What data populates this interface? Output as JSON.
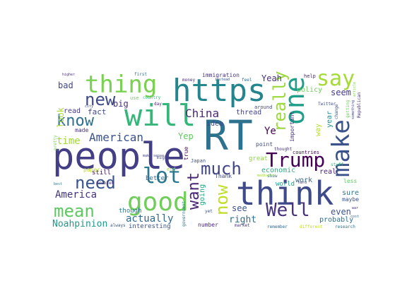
{
  "words": [
    {
      "text": "people",
      "color": "#433e85"
    },
    {
      "text": "RT",
      "color": "#2c718e"
    },
    {
      "text": "think",
      "color": "#3e4a89"
    },
    {
      "text": "https",
      "color": "#25858e"
    },
    {
      "text": "will",
      "color": "#35b779"
    },
    {
      "text": "good",
      "color": "#6ece58"
    },
    {
      "text": "thing",
      "color": "#7ad151"
    },
    {
      "text": "one",
      "color": "#1f9e89"
    },
    {
      "text": "make",
      "color": "#3b528b"
    },
    {
      "text": "Trump",
      "color": "#440154"
    },
    {
      "text": "say",
      "color": "#a5db36"
    },
    {
      "text": "really",
      "color": "#9bd93c"
    },
    {
      "text": "much",
      "color": "#414487"
    },
    {
      "text": "Well",
      "color": "#46327e"
    },
    {
      "text": "lot",
      "color": "#2a788e"
    },
    {
      "text": "want",
      "color": "#482475"
    },
    {
      "text": "need",
      "color": "#3a548c"
    },
    {
      "text": "mean",
      "color": "#5ec962"
    },
    {
      "text": "know",
      "color": "#2d708e"
    },
    {
      "text": "new",
      "color": "#3e4989"
    },
    {
      "text": "now",
      "color": "#bddf26"
    },
    {
      "text": "American",
      "color": "#3b528b"
    },
    {
      "text": "China",
      "color": "#482878"
    },
    {
      "text": "America",
      "color": "#46337f"
    },
    {
      "text": "actually",
      "color": "#31688e"
    },
    {
      "text": "Noahpinion",
      "color": "#1f9a8a"
    },
    {
      "text": "time",
      "color": "#a2da37"
    },
    {
      "text": "look",
      "color": "#addc30"
    },
    {
      "text": "bad",
      "color": "#414487"
    },
    {
      "text": "read",
      "color": "#443a83"
    },
    {
      "text": "fact",
      "color": "#3f4788"
    },
    {
      "text": "big",
      "color": "#472d7b"
    },
    {
      "text": "made",
      "color": "#46327e"
    },
    {
      "text": "see",
      "color": "#3b528b"
    },
    {
      "text": "right",
      "color": "#2d708e"
    },
    {
      "text": "going",
      "color": "#22a884"
    },
    {
      "text": "Yeah",
      "color": "#46327e"
    },
    {
      "text": "Ye",
      "color": "#440154"
    },
    {
      "text": "Yep",
      "color": "#5ec962"
    },
    {
      "text": "idea",
      "color": "#3e4989"
    },
    {
      "text": "thread",
      "color": "#414487"
    },
    {
      "text": "economic",
      "color": "#29af7f"
    },
    {
      "text": "even",
      "color": "#3b528b"
    },
    {
      "text": "probably",
      "color": "#2c728e"
    },
    {
      "text": "way",
      "color": "#b5de2b"
    },
    {
      "text": "year",
      "color": "#21918c"
    },
    {
      "text": "seem",
      "color": "#443983"
    },
    {
      "text": "policy",
      "color": "#6ece58"
    },
    {
      "text": "real",
      "color": "#482677"
    },
    {
      "text": "work",
      "color": "#31688e"
    },
    {
      "text": "sure",
      "color": "#2a788e"
    },
    {
      "text": "maybe",
      "color": "#3b528b"
    },
    {
      "text": "less",
      "color": "#5ec962"
    },
    {
      "text": "point",
      "color": "#3e4a89"
    },
    {
      "text": "important",
      "color": "#46337f"
    },
    {
      "text": "great",
      "color": "#8fd744"
    },
    {
      "text": "still",
      "color": "#440154"
    },
    {
      "text": "though",
      "color": "#2a788e"
    },
    {
      "text": "better",
      "color": "#31688e"
    },
    {
      "text": "interesting",
      "color": "#3b528b"
    },
    {
      "text": "number",
      "color": "#482878"
    },
    {
      "text": "Thank",
      "color": "#3e4989"
    },
    {
      "text": "world",
      "color": "#1f9e89"
    },
    {
      "text": "immigration",
      "color": "#46327e"
    },
    {
      "text": "true",
      "color": "#440154"
    },
    {
      "text": "Japan",
      "color": "#3b528b"
    },
    {
      "text": "end",
      "color": "#a5db36"
    },
    {
      "text": "paper",
      "color": "#bddf26"
    },
    {
      "text": "always",
      "color": "#3b528b"
    },
    {
      "text": "use",
      "color": "#6ece58"
    },
    {
      "text": "country",
      "color": "#35b779"
    },
    {
      "text": "around",
      "color": "#414487"
    },
    {
      "text": "help",
      "color": "#482475"
    },
    {
      "text": "thought",
      "color": "#46327e"
    },
    {
      "text": "countries",
      "color": "#440154"
    },
    {
      "text": "research",
      "color": "#2c728e"
    },
    {
      "text": "market",
      "color": "#46337f"
    },
    {
      "text": "Twitter",
      "color": "#3e4989"
    },
    {
      "text": "show",
      "color": "#31688e"
    },
    {
      "text": "first",
      "color": "#2a788e"
    },
    {
      "text": "might",
      "color": "#414487"
    },
    {
      "text": "pretty",
      "color": "#7ad151"
    },
    {
      "text": "government",
      "color": "#2a788e"
    },
    {
      "text": "problem",
      "color": "#46327e"
    },
    {
      "text": "day",
      "color": "#482878"
    },
    {
      "text": "different",
      "color": "#c2df23"
    },
    {
      "text": "remember",
      "color": "#31688e"
    },
    {
      "text": "stuff",
      "color": "#35b779"
    },
    {
      "text": "change",
      "color": "#3b528b"
    },
    {
      "text": "getting",
      "color": "#6ece58"
    },
    {
      "text": "Republican",
      "color": "#46327e"
    },
    {
      "text": "something",
      "color": "#3e4a89"
    },
    {
      "text": "money",
      "color": "#482878"
    },
    {
      "text": "feel",
      "color": "#31688e"
    },
    {
      "text": "yet",
      "color": "#3b528b"
    },
    {
      "text": "make sense",
      "color": "#414487"
    },
    {
      "text": "article",
      "color": "#7ad151"
    },
    {
      "text": "higher",
      "color": "#46327e"
    },
    {
      "text": "best",
      "color": "#2a788e"
    },
    {
      "text": "city",
      "color": "#3e4989"
    },
    {
      "text": "hard",
      "color": "#414487"
    },
    {
      "text": "mediaeval",
      "color": "#a5db36"
    },
    {
      "text": "instead",
      "color": "#3b528b"
    },
    {
      "text": "cost",
      "color": "#31688e"
    },
    {
      "text": "war",
      "color": "#46327e"
    }
  ]
}
